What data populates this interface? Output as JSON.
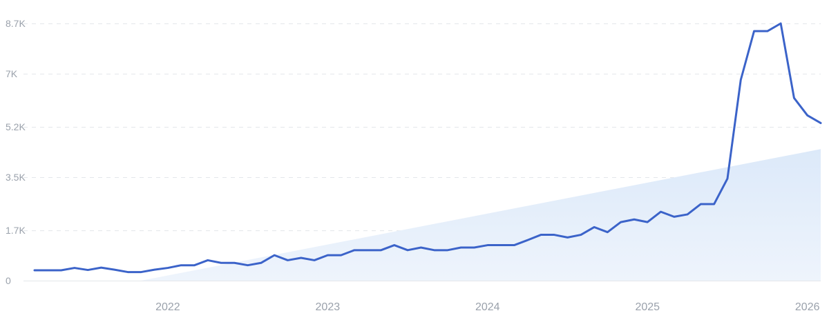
{
  "colors": {
    "line": "#3b63c9",
    "trend_fill_top": "#dce9f9",
    "trend_fill_bottom": "#eef4fc"
  },
  "chart_data": {
    "type": "line",
    "xlabel": "",
    "ylabel": "",
    "grid": true,
    "legend": "none",
    "xlim": [
      "2021-03",
      "2026-02"
    ],
    "ylim": [
      0,
      8700
    ],
    "y_ticks": [
      {
        "value": 0,
        "label": "0"
      },
      {
        "value": 1700,
        "label": "1.7K"
      },
      {
        "value": 3500,
        "label": "3.5K"
      },
      {
        "value": 5200,
        "label": "5.2K"
      },
      {
        "value": 7000,
        "label": "7K"
      },
      {
        "value": 8700,
        "label": "8.7K"
      }
    ],
    "x_ticks": [
      {
        "value": "2022-01",
        "label": "2022"
      },
      {
        "value": "2023-01",
        "label": "2023"
      },
      {
        "value": "2024-01",
        "label": "2024"
      },
      {
        "value": "2025-01",
        "label": "2025"
      },
      {
        "value": "2026-01",
        "label": "2026"
      }
    ],
    "x": [
      "2021-03",
      "2021-04",
      "2021-05",
      "2021-06",
      "2021-07",
      "2021-08",
      "2021-09",
      "2021-10",
      "2021-11",
      "2021-12",
      "2022-01",
      "2022-02",
      "2022-03",
      "2022-04",
      "2022-05",
      "2022-06",
      "2022-07",
      "2022-08",
      "2022-09",
      "2022-10",
      "2022-11",
      "2022-12",
      "2023-01",
      "2023-02",
      "2023-03",
      "2023-04",
      "2023-05",
      "2023-06",
      "2023-07",
      "2023-08",
      "2023-09",
      "2023-10",
      "2023-11",
      "2023-12",
      "2024-01",
      "2024-02",
      "2024-03",
      "2024-04",
      "2024-05",
      "2024-06",
      "2024-07",
      "2024-08",
      "2024-09",
      "2024-10",
      "2024-11",
      "2024-12",
      "2025-01",
      "2025-02",
      "2025-03",
      "2025-04",
      "2025-05",
      "2025-06",
      "2025-07",
      "2025-08",
      "2025-09",
      "2025-10",
      "2025-11",
      "2025-12",
      "2026-01",
      "2026-02"
    ],
    "series": [
      {
        "values": [
          350,
          350,
          350,
          430,
          360,
          440,
          370,
          290,
          290,
          370,
          430,
          520,
          520,
          690,
          600,
          600,
          520,
          600,
          860,
          690,
          770,
          690,
          860,
          860,
          1030,
          1030,
          1030,
          1200,
          1030,
          1120,
          1030,
          1030,
          1120,
          1120,
          1200,
          1200,
          1200,
          1370,
          1550,
          1550,
          1460,
          1550,
          1810,
          1640,
          1980,
          2070,
          1980,
          2330,
          2160,
          2240,
          2590,
          2590,
          3450,
          6790,
          8440,
          8440,
          8700,
          6180,
          5590,
          5330
        ]
      }
    ],
    "trend": {
      "x": [
        "2021-11",
        "2026-02"
      ],
      "y": [
        0,
        4450
      ]
    }
  }
}
